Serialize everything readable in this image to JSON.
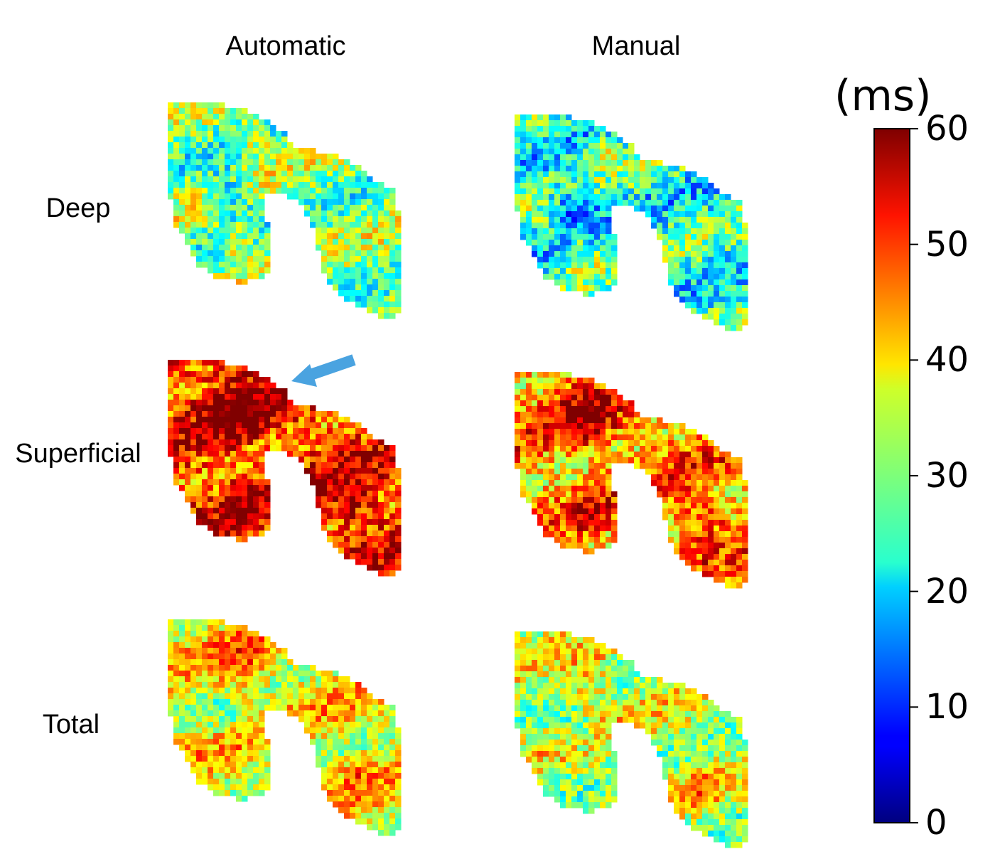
{
  "chart_data": {
    "type": "heatmap",
    "columns": [
      "Automatic",
      "Manual"
    ],
    "rows": [
      "Deep",
      "Superficial",
      "Total"
    ],
    "colormap": "jet",
    "colorbar": {
      "unit": "(ms)",
      "min": 0,
      "max": 60,
      "ticks": [
        0,
        10,
        20,
        30,
        40,
        50,
        60
      ]
    },
    "panels": [
      {
        "row": "Deep",
        "column": "Automatic",
        "mean_ms": 30,
        "variation_ms": 9
      },
      {
        "row": "Deep",
        "column": "Manual",
        "mean_ms": 25,
        "variation_ms": 10
      },
      {
        "row": "Superficial",
        "column": "Automatic",
        "mean_ms": 50,
        "variation_ms": 10
      },
      {
        "row": "Superficial",
        "column": "Manual",
        "mean_ms": 44,
        "variation_ms": 10
      },
      {
        "row": "Total",
        "column": "Automatic",
        "mean_ms": 38,
        "variation_ms": 8
      },
      {
        "row": "Total",
        "column": "Manual",
        "mean_ms": 34,
        "variation_ms": 9
      }
    ],
    "annotation": {
      "type": "arrow",
      "color": "#4aa3e0",
      "target": "Superficial / Automatic"
    }
  }
}
